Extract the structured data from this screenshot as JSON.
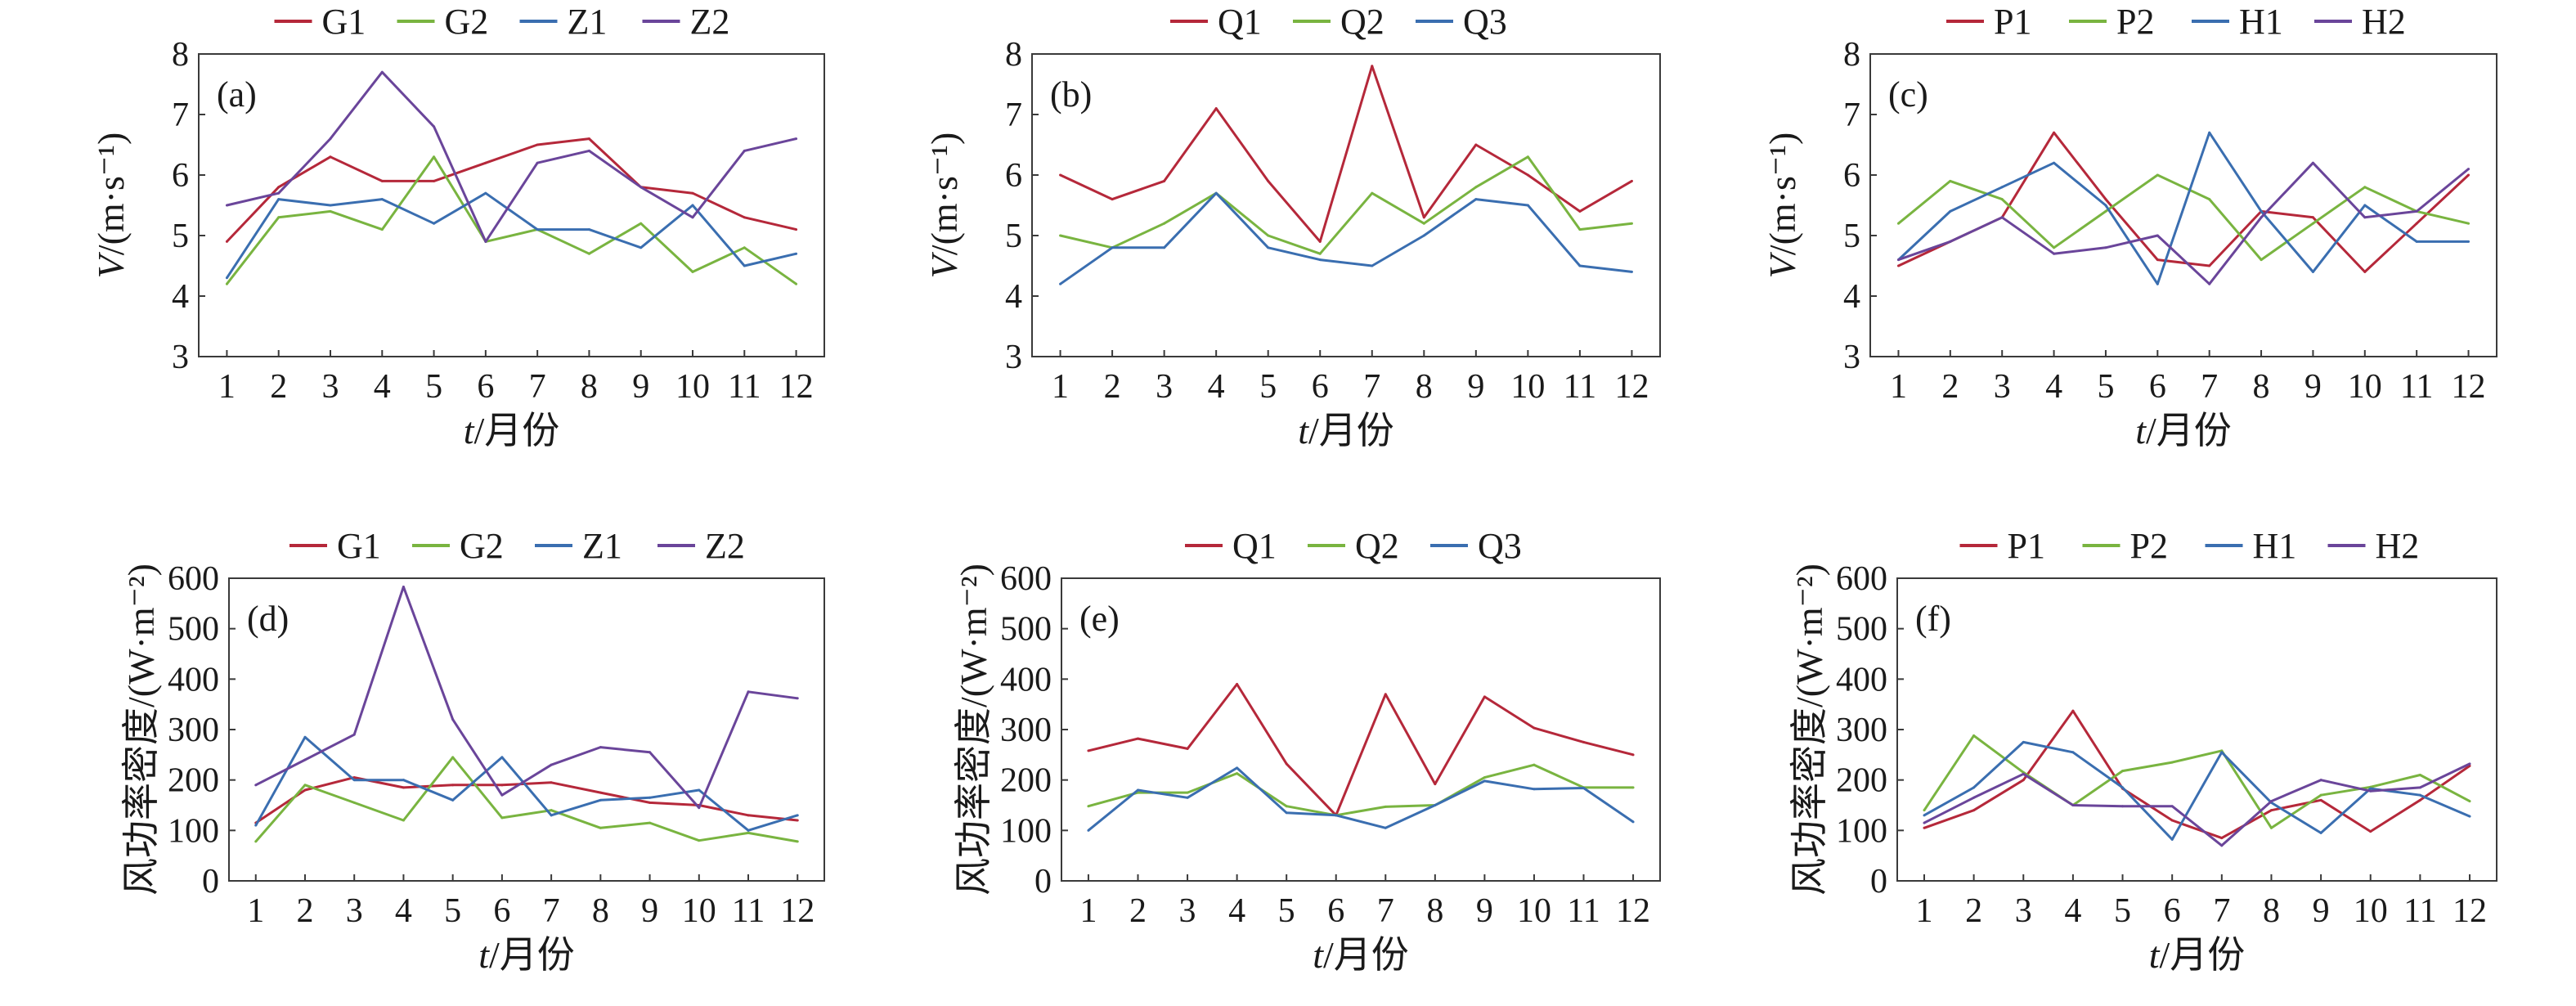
{
  "figure": {
    "colors": {
      "G1": "#b5283a",
      "G2": "#79b440",
      "Z1": "#3a6eb0",
      "Z2": "#6a459a",
      "Q1": "#b5283a",
      "Q2": "#79b440",
      "Q3": "#3a6eb0",
      "P1": "#b5283a",
      "P2": "#79b440",
      "H1": "#3a6eb0",
      "H2": "#6a459a"
    }
  },
  "chart_data": [
    {
      "panel": "(a)",
      "type": "line",
      "x": [
        1,
        2,
        3,
        4,
        5,
        6,
        7,
        8,
        9,
        10,
        11,
        12
      ],
      "xticklabels": [
        "1",
        "2",
        "3",
        "4",
        "5",
        "6",
        "7",
        "8",
        "9",
        "10",
        "11",
        "12"
      ],
      "xlabel": "t/月份",
      "ylabel": "V/(m·s⁻¹)",
      "ylim": [
        3,
        8
      ],
      "yticks": [
        3,
        4,
        5,
        6,
        7,
        8
      ],
      "grid": false,
      "legend_position": "top",
      "series": [
        {
          "name": "G1",
          "values": [
            4.9,
            5.8,
            6.3,
            5.9,
            5.9,
            6.2,
            6.5,
            6.6,
            5.8,
            5.7,
            5.3,
            5.1
          ]
        },
        {
          "name": "G2",
          "values": [
            4.2,
            5.3,
            5.4,
            5.1,
            6.3,
            4.9,
            5.1,
            4.7,
            5.2,
            4.4,
            4.8,
            4.2
          ]
        },
        {
          "name": "Z1",
          "values": [
            4.3,
            5.6,
            5.5,
            5.6,
            5.2,
            5.7,
            5.1,
            5.1,
            4.8,
            5.5,
            4.5,
            4.7
          ]
        },
        {
          "name": "Z2",
          "values": [
            5.5,
            5.7,
            6.6,
            7.7,
            6.8,
            4.9,
            6.2,
            6.4,
            5.8,
            5.3,
            6.4,
            6.6
          ]
        }
      ]
    },
    {
      "panel": "(b)",
      "type": "line",
      "x": [
        1,
        2,
        3,
        4,
        5,
        6,
        7,
        8,
        9,
        10,
        11,
        12
      ],
      "xticklabels": [
        "1",
        "2",
        "3",
        "4",
        "5",
        "6",
        "7",
        "8",
        "9",
        "10",
        "11",
        "12"
      ],
      "xlabel": "t/月份",
      "ylabel": "V/(m·s⁻¹)",
      "ylim": [
        3,
        8
      ],
      "yticks": [
        3,
        4,
        5,
        6,
        7,
        8
      ],
      "grid": false,
      "legend_position": "top",
      "series": [
        {
          "name": "Q1",
          "values": [
            6.0,
            5.6,
            5.9,
            7.1,
            5.9,
            4.9,
            7.8,
            5.3,
            6.5,
            6.0,
            5.4,
            5.9
          ]
        },
        {
          "name": "Q2",
          "values": [
            5.0,
            4.8,
            5.2,
            5.7,
            5.0,
            4.7,
            5.7,
            5.2,
            5.8,
            6.3,
            5.1,
            5.2
          ]
        },
        {
          "name": "Q3",
          "values": [
            4.2,
            4.8,
            4.8,
            5.7,
            4.8,
            4.6,
            4.5,
            5.0,
            5.6,
            5.5,
            4.5,
            4.4
          ]
        }
      ]
    },
    {
      "panel": "(c)",
      "type": "line",
      "x": [
        1,
        2,
        3,
        4,
        5,
        6,
        7,
        8,
        9,
        10,
        11,
        12
      ],
      "xticklabels": [
        "1",
        "2",
        "3",
        "4",
        "5",
        "6",
        "7",
        "8",
        "9",
        "10",
        "11",
        "12"
      ],
      "xlabel": "t/月份",
      "ylabel": "V/(m·s⁻¹)",
      "ylim": [
        3,
        8
      ],
      "yticks": [
        3,
        4,
        5,
        6,
        7,
        8
      ],
      "grid": false,
      "legend_position": "top",
      "series": [
        {
          "name": "P1",
          "values": [
            4.5,
            4.9,
            5.3,
            6.7,
            5.6,
            4.6,
            4.5,
            5.4,
            5.3,
            4.4,
            5.2,
            6.0
          ]
        },
        {
          "name": "P2",
          "values": [
            5.2,
            5.9,
            5.6,
            4.8,
            5.4,
            6.0,
            5.6,
            4.6,
            5.2,
            5.8,
            5.4,
            5.2
          ]
        },
        {
          "name": "H1",
          "values": [
            4.6,
            5.4,
            5.8,
            6.2,
            5.5,
            4.2,
            6.7,
            5.4,
            4.4,
            5.5,
            4.9,
            4.9
          ]
        },
        {
          "name": "H2",
          "values": [
            4.6,
            4.9,
            5.3,
            4.7,
            4.8,
            5.0,
            4.2,
            5.3,
            6.2,
            5.3,
            5.4,
            6.1
          ]
        }
      ]
    },
    {
      "panel": "(d)",
      "type": "line",
      "x": [
        1,
        2,
        3,
        4,
        5,
        6,
        7,
        8,
        9,
        10,
        11,
        12
      ],
      "xticklabels": [
        "1",
        "2",
        "3",
        "4",
        "5",
        "6",
        "7",
        "8",
        "9",
        "10",
        "11",
        "12"
      ],
      "xlabel": "t/月份",
      "ylabel": "风功率密度/(W·m⁻²)",
      "ylim": [
        0,
        600
      ],
      "yticks": [
        0,
        100,
        200,
        300,
        400,
        500,
        600
      ],
      "grid": false,
      "legend_position": "top",
      "series": [
        {
          "name": "G1",
          "values": [
            115,
            180,
            205,
            185,
            190,
            190,
            195,
            175,
            155,
            150,
            130,
            120
          ]
        },
        {
          "name": "G2",
          "values": [
            78,
            190,
            155,
            120,
            245,
            125,
            140,
            105,
            115,
            80,
            95,
            78
          ]
        },
        {
          "name": "Z1",
          "values": [
            110,
            285,
            200,
            200,
            160,
            245,
            130,
            160,
            165,
            180,
            100,
            130
          ]
        },
        {
          "name": "Z2",
          "values": [
            190,
            240,
            290,
            583,
            320,
            170,
            230,
            265,
            255,
            145,
            375,
            362
          ]
        }
      ]
    },
    {
      "panel": "(e)",
      "type": "line",
      "x": [
        1,
        2,
        3,
        4,
        5,
        6,
        7,
        8,
        9,
        10,
        11,
        12
      ],
      "xticklabels": [
        "1",
        "2",
        "3",
        "4",
        "5",
        "6",
        "7",
        "8",
        "9",
        "10",
        "11",
        "12"
      ],
      "xlabel": "t/月份",
      "ylabel": "风功率密度/(W·m⁻²)",
      "ylim": [
        0,
        600
      ],
      "yticks": [
        0,
        100,
        200,
        300,
        400,
        500,
        600
      ],
      "grid": false,
      "legend_position": "top",
      "series": [
        {
          "name": "Q1",
          "values": [
            258,
            282,
            262,
            390,
            232,
            130,
            370,
            192,
            365,
            303,
            275,
            250
          ]
        },
        {
          "name": "Q2",
          "values": [
            148,
            175,
            175,
            213,
            148,
            130,
            147,
            150,
            205,
            230,
            185,
            185
          ]
        },
        {
          "name": "Q3",
          "values": [
            100,
            180,
            165,
            224,
            135,
            130,
            105,
            150,
            198,
            182,
            184,
            117
          ]
        }
      ]
    },
    {
      "panel": "(f)",
      "type": "line",
      "x": [
        1,
        2,
        3,
        4,
        5,
        6,
        7,
        8,
        9,
        10,
        11,
        12
      ],
      "xticklabels": [
        "1",
        "2",
        "3",
        "4",
        "5",
        "6",
        "7",
        "8",
        "9",
        "10",
        "11",
        "12"
      ],
      "xlabel": "t/月份",
      "ylabel": "风功率密度/(W·m⁻²)",
      "ylim": [
        0,
        600
      ],
      "yticks": [
        0,
        100,
        200,
        300,
        400,
        500,
        600
      ],
      "grid": false,
      "legend_position": "top",
      "series": [
        {
          "name": "P1",
          "values": [
            105,
            140,
            200,
            337,
            183,
            120,
            85,
            140,
            160,
            98,
            160,
            228
          ]
        },
        {
          "name": "P2",
          "values": [
            140,
            288,
            215,
            150,
            218,
            235,
            258,
            105,
            170,
            186,
            210,
            158
          ]
        },
        {
          "name": "H1",
          "values": [
            130,
            185,
            275,
            255,
            185,
            82,
            255,
            155,
            95,
            183,
            170,
            128
          ]
        },
        {
          "name": "H2",
          "values": [
            115,
            165,
            212,
            150,
            148,
            148,
            70,
            158,
            200,
            178,
            185,
            232
          ]
        }
      ]
    }
  ]
}
